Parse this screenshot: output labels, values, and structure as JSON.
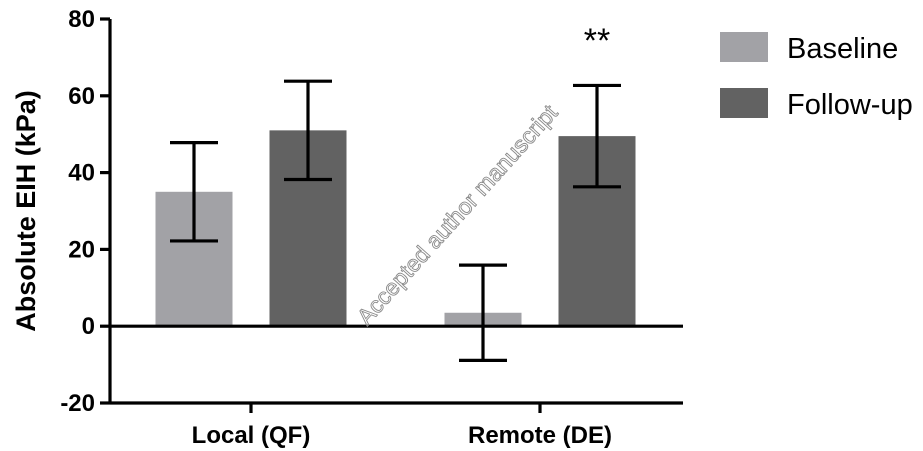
{
  "chart_data": {
    "type": "bar",
    "ylabel": "Absolute EIH (kPa)",
    "xlabel": "",
    "ylim": [
      -20,
      80
    ],
    "yticks": [
      -20,
      0,
      20,
      40,
      60,
      80
    ],
    "ytick_labels": [
      "-20",
      "0",
      "20",
      "40",
      "60",
      "80"
    ],
    "categories": [
      "Local (QF)",
      "Remote (DE)"
    ],
    "series": [
      {
        "name": "Baseline",
        "color": "#a2a2a6",
        "values": [
          35,
          3.5
        ],
        "error": [
          12.8,
          12.4
        ]
      },
      {
        "name": "Follow-up",
        "color": "#626262",
        "values": [
          51,
          49.5
        ],
        "error": [
          12.8,
          13.2
        ]
      }
    ],
    "annotations": [
      {
        "text": "**",
        "category_index": 1,
        "series_index": 1
      }
    ],
    "legend_position": "top-right",
    "grid": false
  },
  "watermark": "Accepted author manuscript"
}
